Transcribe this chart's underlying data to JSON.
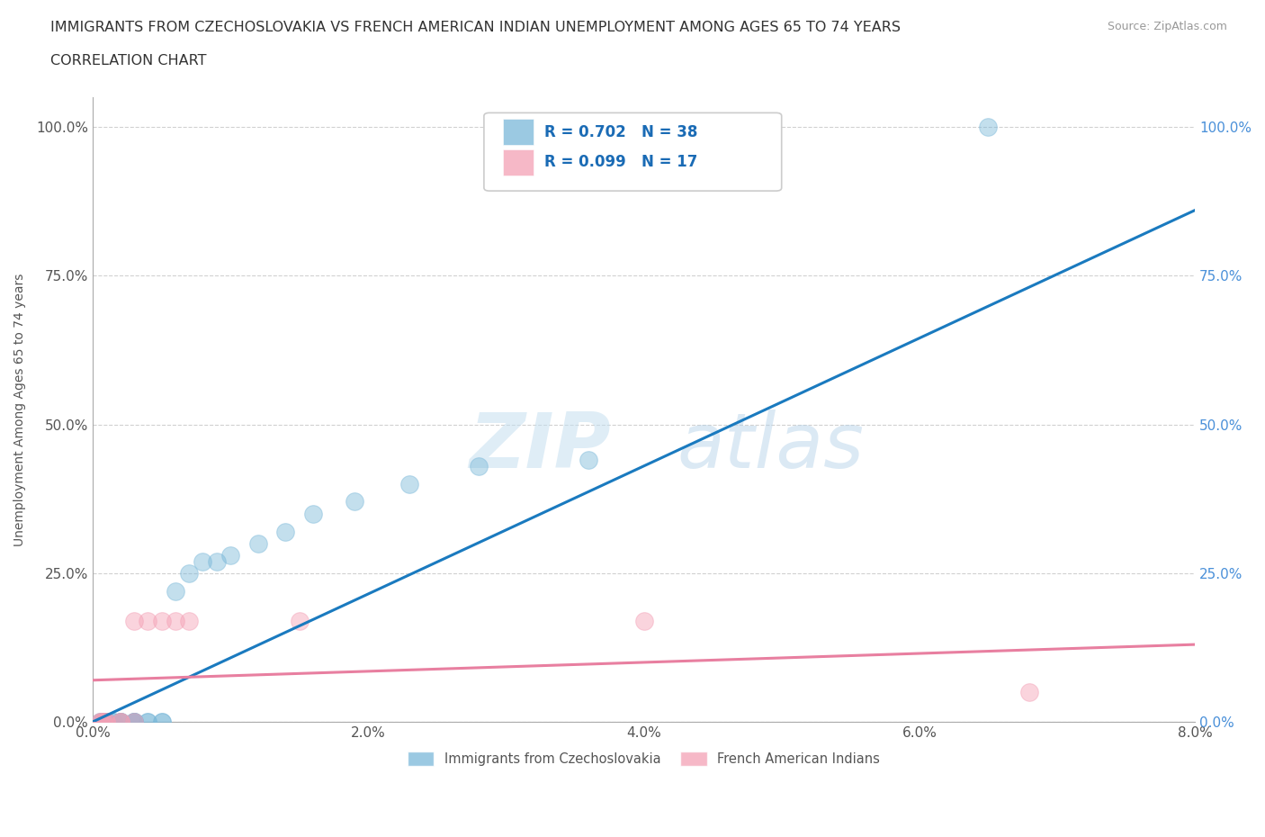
{
  "title_line1": "IMMIGRANTS FROM CZECHOSLOVAKIA VS FRENCH AMERICAN INDIAN UNEMPLOYMENT AMONG AGES 65 TO 74 YEARS",
  "title_line2": "CORRELATION CHART",
  "source_text": "Source: ZipAtlas.com",
  "ylabel": "Unemployment Among Ages 65 to 74 years",
  "xlim": [
    0.0,
    0.08
  ],
  "ylim": [
    0.0,
    1.05
  ],
  "xtick_labels": [
    "0.0%",
    "2.0%",
    "4.0%",
    "6.0%",
    "8.0%"
  ],
  "xtick_vals": [
    0.0,
    0.02,
    0.04,
    0.06,
    0.08
  ],
  "ytick_labels": [
    "0.0%",
    "25.0%",
    "50.0%",
    "75.0%",
    "100.0%"
  ],
  "ytick_vals": [
    0.0,
    0.25,
    0.5,
    0.75,
    1.0
  ],
  "blue_color": "#7ab8d9",
  "pink_color": "#f4a0b5",
  "blue_line_color": "#1a7abf",
  "pink_line_color": "#e87fa0",
  "R_blue": 0.702,
  "N_blue": 38,
  "R_pink": 0.099,
  "N_pink": 17,
  "legend_label_blue": "Immigrants from Czechoslovakia",
  "legend_label_pink": "French American Indians",
  "watermark_zip": "ZIP",
  "watermark_atlas": "atlas",
  "blue_scatter_x": [
    0.0005,
    0.0006,
    0.0007,
    0.0008,
    0.0009,
    0.001,
    0.001,
    0.001,
    0.001,
    0.001,
    0.0015,
    0.0015,
    0.002,
    0.002,
    0.002,
    0.002,
    0.003,
    0.003,
    0.003,
    0.003,
    0.003,
    0.004,
    0.004,
    0.005,
    0.005,
    0.006,
    0.007,
    0.008,
    0.009,
    0.01,
    0.012,
    0.014,
    0.016,
    0.019,
    0.023,
    0.028,
    0.036,
    0.065
  ],
  "blue_scatter_y": [
    0.0,
    0.0,
    0.0,
    0.0,
    0.0,
    0.0,
    0.0,
    0.0,
    0.0,
    0.0,
    0.0,
    0.0,
    0.0,
    0.0,
    0.0,
    0.0,
    0.0,
    0.0,
    0.0,
    0.0,
    0.0,
    0.0,
    0.0,
    0.0,
    0.0,
    0.22,
    0.25,
    0.27,
    0.27,
    0.28,
    0.3,
    0.32,
    0.35,
    0.37,
    0.4,
    0.43,
    0.44,
    1.0
  ],
  "pink_scatter_x": [
    0.0005,
    0.0006,
    0.0007,
    0.0008,
    0.001,
    0.001,
    0.002,
    0.002,
    0.003,
    0.003,
    0.004,
    0.005,
    0.006,
    0.007,
    0.015,
    0.04,
    0.068
  ],
  "pink_scatter_y": [
    0.0,
    0.0,
    0.0,
    0.0,
    0.0,
    0.0,
    0.0,
    0.0,
    0.0,
    0.17,
    0.17,
    0.17,
    0.17,
    0.17,
    0.17,
    0.17,
    0.05
  ],
  "blue_trend_x": [
    0.0,
    0.08
  ],
  "blue_trend_y": [
    0.0,
    0.86
  ],
  "pink_trend_x": [
    0.0,
    0.08
  ],
  "pink_trend_y": [
    0.07,
    0.13
  ]
}
